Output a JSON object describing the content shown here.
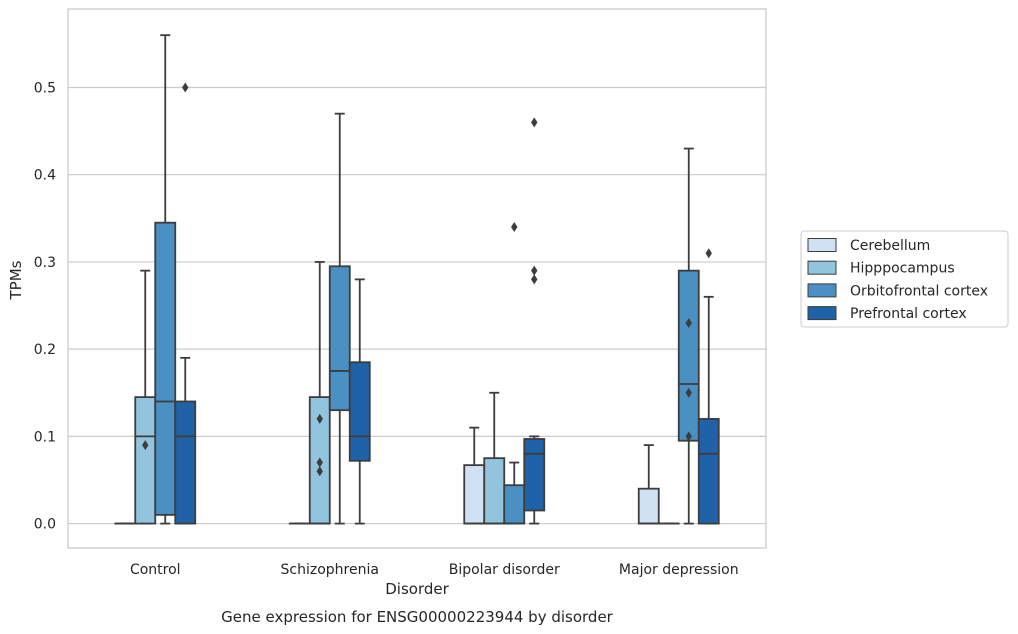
{
  "chart_data": {
    "type": "boxplot",
    "title": "Gene expression for ENSG00000223944 by disorder",
    "xlabel": "Disorder",
    "ylabel": "TPMs",
    "categories": [
      "Control",
      "Schizophrenia",
      "Bipolar disorder",
      "Major depression"
    ],
    "ylim": [
      -0.028,
      0.59
    ],
    "yticks": [
      0.0,
      0.1,
      0.2,
      0.3,
      0.4,
      0.5
    ],
    "ytick_labels": [
      "0.0",
      "0.1",
      "0.2",
      "0.3",
      "0.4",
      "0.5"
    ],
    "grid": "horizontal",
    "legend_position": "right",
    "series": [
      {
        "name": "Cerebellum",
        "color": "#cfe1f2",
        "boxes": [
          {
            "q1": 0,
            "median": 0,
            "q3": 0,
            "whislo": 0,
            "whishi": 0,
            "fliers": []
          },
          {
            "q1": 0,
            "median": 0,
            "q3": 0,
            "whislo": 0,
            "whishi": 0,
            "fliers": []
          },
          {
            "q1": 0,
            "median": 0,
            "q3": 0.067,
            "whislo": 0,
            "whishi": 0.11,
            "fliers": []
          },
          {
            "q1": 0,
            "median": 0,
            "q3": 0.04,
            "whislo": 0,
            "whishi": 0.09,
            "fliers": []
          }
        ]
      },
      {
        "name": "Hipppocampus",
        "color": "#93c4de",
        "boxes": [
          {
            "q1": 0,
            "median": 0.1,
            "q3": 0.145,
            "whislo": 0,
            "whishi": 0.29,
            "fliers": [
              0.09
            ]
          },
          {
            "q1": 0,
            "median": 0,
            "q3": 0.145,
            "whislo": 0,
            "whishi": 0.3,
            "fliers": [
              0.12,
              0.07,
              0.06
            ]
          },
          {
            "q1": 0,
            "median": 0,
            "q3": 0.075,
            "whislo": 0,
            "whishi": 0.15,
            "fliers": []
          },
          {
            "q1": 0,
            "median": 0,
            "q3": 0,
            "whislo": 0,
            "whishi": 0,
            "fliers": []
          }
        ]
      },
      {
        "name": "Orbitofrontal cortex",
        "color": "#4a90c2",
        "boxes": [
          {
            "q1": 0.01,
            "median": 0.14,
            "q3": 0.345,
            "whislo": 0,
            "whishi": 0.56,
            "fliers": []
          },
          {
            "q1": 0.13,
            "median": 0.175,
            "q3": 0.295,
            "whislo": 0,
            "whishi": 0.47,
            "fliers": []
          },
          {
            "q1": 0,
            "median": 0,
            "q3": 0.044,
            "whislo": 0,
            "whishi": 0.07,
            "fliers": [
              0.34
            ]
          },
          {
            "q1": 0.095,
            "median": 0.16,
            "q3": 0.29,
            "whislo": 0,
            "whishi": 0.43,
            "fliers": [
              0.23,
              0.15,
              0.1
            ]
          }
        ]
      },
      {
        "name": "Prefrontal cortex",
        "color": "#1f62a7",
        "boxes": [
          {
            "q1": 0,
            "median": 0.1,
            "q3": 0.14,
            "whislo": 0,
            "whishi": 0.19,
            "fliers": [
              0.5
            ]
          },
          {
            "q1": 0.072,
            "median": 0.1,
            "q3": 0.185,
            "whislo": 0,
            "whishi": 0.28,
            "fliers": []
          },
          {
            "q1": 0.015,
            "median": 0.08,
            "q3": 0.097,
            "whislo": 0,
            "whishi": 0.1,
            "fliers": [
              0.46,
              0.29,
              0.28
            ]
          },
          {
            "q1": 0,
            "median": 0.08,
            "q3": 0.12,
            "whislo": 0,
            "whishi": 0.26,
            "fliers": [
              0.31
            ]
          }
        ]
      }
    ]
  }
}
